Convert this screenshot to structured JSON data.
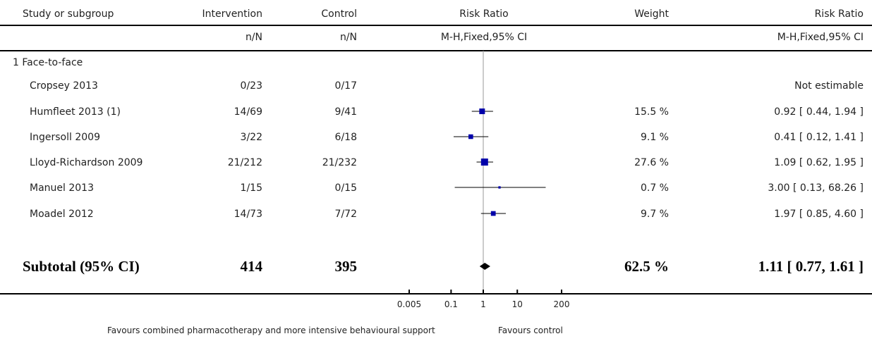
{
  "header": {
    "study": "Study or subgroup",
    "intervention": "Intervention",
    "control": "Control",
    "rr_plot": "Risk Ratio",
    "weight": "Weight",
    "rr_text": "Risk Ratio",
    "intervention_unit": "n/N",
    "control_unit": "n/N",
    "rr_plot_method": "M-H,Fixed,95% CI",
    "rr_text_method": "M-H,Fixed,95% CI"
  },
  "subgroup": {
    "label": "1 Face-to-face"
  },
  "studies": [
    {
      "name": "Cropsey 2013",
      "intervention": "0/23",
      "control": "0/17",
      "weight": "",
      "rr_text": "Not estimable"
    },
    {
      "name": "Humfleet 2013 (1)",
      "intervention": "14/69",
      "control": "9/41",
      "weight": "15.5 %",
      "rr_text": "0.92 [ 0.44, 1.94 ]"
    },
    {
      "name": "Ingersoll 2009",
      "intervention": "3/22",
      "control": "6/18",
      "weight": "9.1 %",
      "rr_text": "0.41 [ 0.12, 1.41 ]"
    },
    {
      "name": "Lloyd-Richardson 2009",
      "intervention": "21/212",
      "control": "21/232",
      "weight": "27.6 %",
      "rr_text": "1.09 [ 0.62, 1.95 ]"
    },
    {
      "name": "Manuel 2013",
      "intervention": "1/15",
      "control": "0/15",
      "weight": "0.7 %",
      "rr_text": "3.00 [ 0.13, 68.26 ]"
    },
    {
      "name": "Moadel 2012",
      "intervention": "14/73",
      "control": "7/72",
      "weight": "9.7 %",
      "rr_text": "1.97 [ 0.85, 4.60 ]"
    }
  ],
  "subtotal": {
    "label": "Subtotal (95% CI)",
    "intervention": "414",
    "control": "395",
    "weight": "62.5 %",
    "rr_text": "1.11 [ 0.77, 1.61 ]"
  },
  "axis": {
    "ticks": [
      "0.005",
      "0.1",
      "1",
      "10",
      "200"
    ]
  },
  "footer": {
    "favours_left": "Favours combined pharmacotherapy and more intensive behavioural support",
    "favours_right": "Favours control"
  },
  "colors": {
    "marker": "#0000aa",
    "line": "#000000",
    "null_line": "#999999"
  },
  "chart_data": {
    "type": "forest",
    "scale": "log",
    "xlim": [
      0.005,
      200
    ],
    "ticks": [
      0.005,
      0.1,
      1,
      10,
      200
    ],
    "null_value": 1,
    "studies": [
      {
        "name": "Cropsey 2013",
        "rr": null,
        "lo": null,
        "hi": null,
        "weight": null
      },
      {
        "name": "Humfleet 2013 (1)",
        "rr": 0.92,
        "lo": 0.44,
        "hi": 1.94,
        "weight": 15.5
      },
      {
        "name": "Ingersoll 2009",
        "rr": 0.41,
        "lo": 0.12,
        "hi": 1.41,
        "weight": 9.1
      },
      {
        "name": "Lloyd-Richardson 2009",
        "rr": 1.09,
        "lo": 0.62,
        "hi": 1.95,
        "weight": 27.6
      },
      {
        "name": "Manuel 2013",
        "rr": 3.0,
        "lo": 0.13,
        "hi": 68.26,
        "weight": 0.7
      },
      {
        "name": "Moadel 2012",
        "rr": 1.97,
        "lo": 0.85,
        "hi": 4.6,
        "weight": 9.7
      }
    ],
    "subtotal": {
      "rr": 1.11,
      "lo": 0.77,
      "hi": 1.61,
      "weight": 62.5
    }
  }
}
